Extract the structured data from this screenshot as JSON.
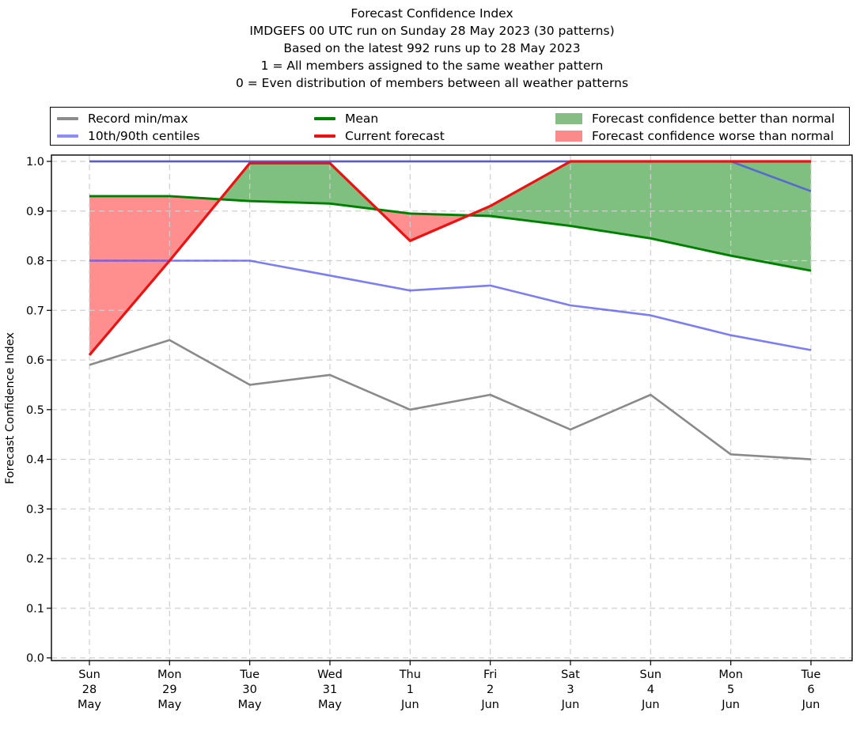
{
  "title": {
    "lines": [
      "Forecast Confidence Index",
      "IMDGEFS 00 UTC run on Sunday 28 May 2023 (30 patterns)",
      "Based on the latest 992 runs up to 28 May 2023",
      "1 = All members assigned to the same weather pattern",
      "0 = Even distribution of members between all weather patterns"
    ]
  },
  "legend": {
    "items": [
      {
        "label": "Record min/max",
        "swatch": "line",
        "color": "#8c8c8c"
      },
      {
        "label": "10th/90th centiles",
        "swatch": "line",
        "color": "#8d8df5"
      },
      {
        "label": "Mean",
        "swatch": "line",
        "color": "#008000"
      },
      {
        "label": "Current forecast",
        "swatch": "line",
        "color": "#ee1111"
      },
      {
        "label": "Forecast confidence better than normal",
        "swatch": "patch",
        "color": "#85bd85"
      },
      {
        "label": "Forecast confidence worse than normal",
        "swatch": "patch",
        "color": "#fb8a8a"
      }
    ]
  },
  "axes": {
    "ylabel": "Forecast Confidence Index",
    "yticks": [
      "0.0",
      "0.1",
      "0.2",
      "0.3",
      "0.4",
      "0.5",
      "0.6",
      "0.7",
      "0.8",
      "0.9",
      "1.0"
    ]
  },
  "chart_data": {
    "type": "line",
    "title": "Forecast Confidence Index",
    "ylabel": "Forecast Confidence Index",
    "ylim": [
      0.0,
      1.0
    ],
    "grid": true,
    "legend_position": "top",
    "categories": [
      "Sun 28 May",
      "Mon 29 May",
      "Tue 30 May",
      "Wed 31 May",
      "Thu 1 Jun",
      "Fri 2 Jun",
      "Sat 3 Jun",
      "Sun 4 Jun",
      "Mon 5 Jun",
      "Tue 6 Jun"
    ],
    "xticklabels": [
      {
        "dow": "Sun",
        "day": "28",
        "month": "May"
      },
      {
        "dow": "Mon",
        "day": "29",
        "month": "May"
      },
      {
        "dow": "Tue",
        "day": "30",
        "month": "May"
      },
      {
        "dow": "Wed",
        "day": "31",
        "month": "May"
      },
      {
        "dow": "Thu",
        "day": "1",
        "month": "Jun"
      },
      {
        "dow": "Fri",
        "day": "2",
        "month": "Jun"
      },
      {
        "dow": "Sat",
        "day": "3",
        "month": "Jun"
      },
      {
        "dow": "Sun",
        "day": "4",
        "month": "Jun"
      },
      {
        "dow": "Mon",
        "day": "5",
        "month": "Jun"
      },
      {
        "dow": "Tue",
        "day": "6",
        "month": "Jun"
      }
    ],
    "series": [
      {
        "name": "Record max",
        "color": "#8a8a8a",
        "opacity": 1,
        "width": 2.6,
        "values": [
          1.0,
          1.0,
          1.0,
          1.0,
          1.0,
          1.0,
          1.0,
          1.0,
          1.0,
          1.0
        ]
      },
      {
        "name": "Record min",
        "color": "#8a8a8a",
        "opacity": 1,
        "width": 2.6,
        "values": [
          0.59,
          0.64,
          0.55,
          0.57,
          0.5,
          0.53,
          0.46,
          0.53,
          0.41,
          0.4
        ]
      },
      {
        "name": "90th centile",
        "color": "#4646f0",
        "opacity": 0.7,
        "width": 2.6,
        "values": [
          1.0,
          1.0,
          1.0,
          1.0,
          1.0,
          1.0,
          1.0,
          1.0,
          1.0,
          0.94
        ]
      },
      {
        "name": "10th centile",
        "color": "#4646f0",
        "opacity": 0.7,
        "width": 2.6,
        "values": [
          0.8,
          0.8,
          0.8,
          0.77,
          0.74,
          0.75,
          0.71,
          0.69,
          0.65,
          0.62
        ]
      },
      {
        "name": "Mean",
        "color": "#008000",
        "opacity": 1,
        "width": 2.9,
        "values": [
          0.93,
          0.93,
          0.92,
          0.915,
          0.895,
          0.89,
          0.87,
          0.845,
          0.81,
          0.78
        ]
      },
      {
        "name": "Current forecast",
        "color": "#ee1111",
        "opacity": 1,
        "width": 3.2,
        "values": [
          0.61,
          0.8,
          1.0,
          1.0,
          0.84,
          0.91,
          1.0,
          1.0,
          1.0,
          1.0
        ]
      }
    ],
    "fills": {
      "between": [
        "Current forecast",
        "Mean"
      ],
      "better_than_normal_color": "rgba(0,128,0,0.5)",
      "worse_than_normal_color": "rgba(255,16,16,0.47)"
    }
  }
}
